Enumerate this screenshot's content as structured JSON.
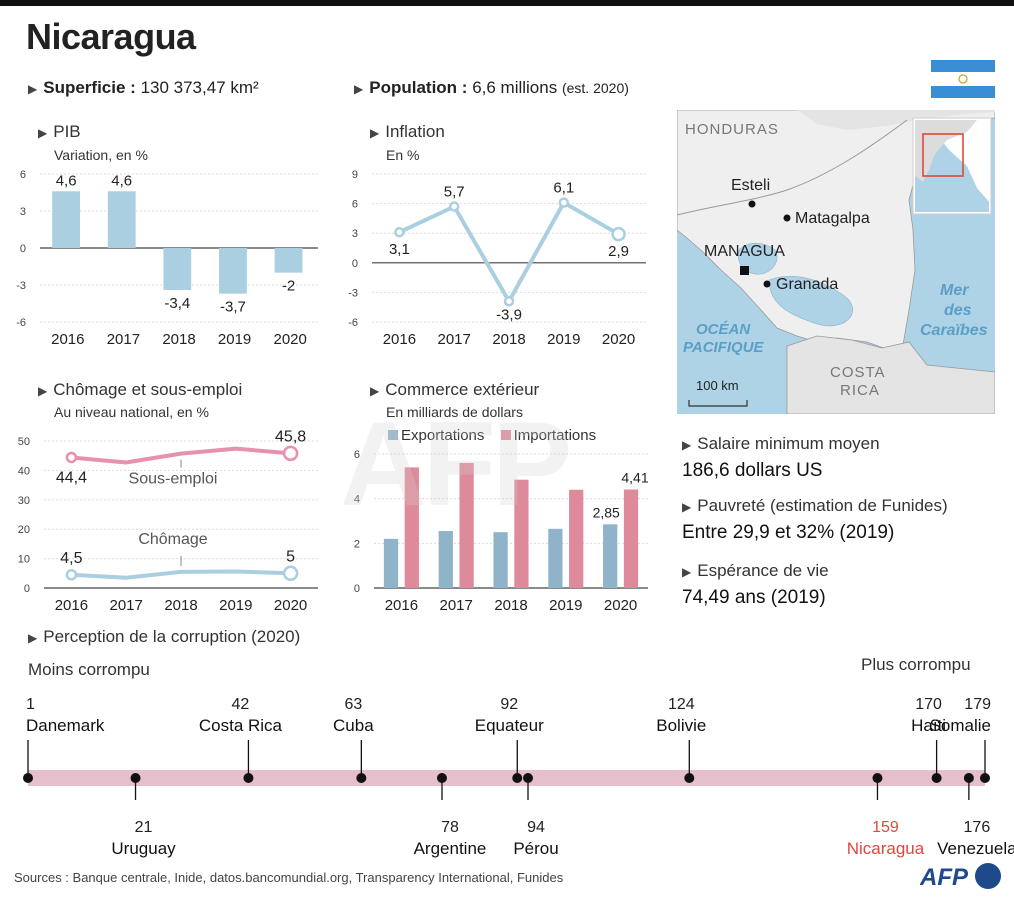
{
  "title": "Nicaragua",
  "facts": {
    "superficie_label": "Superficie :",
    "superficie_value": "130 373,47 km²",
    "population_label": "Population :",
    "population_value": "6,6 millions",
    "population_note": "(est. 2020)"
  },
  "chart_data": [
    {
      "type": "bar",
      "title": "PIB",
      "subtitle": "Variation, en %",
      "categories": [
        "2016",
        "2017",
        "2018",
        "2019",
        "2020"
      ],
      "values": [
        4.6,
        4.6,
        -3.4,
        -3.7,
        -2
      ],
      "value_labels": [
        "4,6",
        "4,6",
        "-3,4",
        "-3,7",
        "-2"
      ],
      "yticks": [
        "6",
        "3",
        "0",
        "-3",
        "-6"
      ],
      "ylim": [
        -6,
        6
      ],
      "color": "#a9cfe0"
    },
    {
      "type": "line",
      "title": "Inflation",
      "subtitle": "En %",
      "categories": [
        "2016",
        "2017",
        "2018",
        "2019",
        "2020"
      ],
      "values": [
        3.1,
        5.7,
        -3.9,
        6.1,
        2.9
      ],
      "value_labels": [
        "3,1",
        "5,7",
        "-3,9",
        "6,1",
        "2,9"
      ],
      "yticks": [
        "9",
        "6",
        "3",
        "0",
        "-3",
        "-6"
      ],
      "ylim": [
        -6,
        9
      ],
      "color": "#a9cfe0"
    },
    {
      "type": "line",
      "title": "Chômage et sous-emploi",
      "subtitle": "Au niveau national, en %",
      "categories": [
        "2016",
        "2017",
        "2018",
        "2019",
        "2020"
      ],
      "yticks": [
        "50",
        "40",
        "30",
        "20",
        "10",
        "0"
      ],
      "ylim": [
        0,
        50
      ],
      "series": [
        {
          "name": "Sous-emploi",
          "values": [
            44.4,
            42.7,
            45.7,
            47.4,
            45.8
          ],
          "labels": [
            "44,4",
            "",
            "",
            "",
            "45,8"
          ],
          "color": "#e890b0"
        },
        {
          "name": "Chômage",
          "values": [
            4.5,
            3.5,
            5.5,
            5.6,
            5
          ],
          "labels": [
            "4,5",
            "",
            "",
            "",
            "5"
          ],
          "color": "#a9cfe0"
        }
      ]
    },
    {
      "type": "bar",
      "title": "Commerce extérieur",
      "subtitle": "En milliards de dollars",
      "categories": [
        "2016",
        "2017",
        "2018",
        "2019",
        "2020"
      ],
      "yticks": [
        "6",
        "4",
        "2",
        "0"
      ],
      "ylim": [
        0,
        6
      ],
      "series": [
        {
          "name": "Exportations",
          "values": [
            2.2,
            2.55,
            2.5,
            2.65,
            2.85
          ],
          "labels": [
            "",
            "",
            "",
            "",
            "2,85"
          ],
          "color": "#8fb3c9"
        },
        {
          "name": "Importations",
          "values": [
            5.4,
            5.6,
            4.85,
            4.4,
            4.41
          ],
          "labels": [
            "",
            "",
            "",
            "",
            "4,41"
          ],
          "color": "#de8a9a"
        }
      ]
    }
  ],
  "map": {
    "labels": {
      "honduras": "HONDURAS",
      "esteli": "Esteli",
      "matagalpa": "Matagalpa",
      "managua": "MANAGUA",
      "granada": "Granada",
      "ocean_1": "OCÉAN",
      "ocean_2": "PACIFIQUE",
      "mer_1": "Mer",
      "mer_2": "des",
      "mer_3": "Caraïbes",
      "costa_1": "COSTA",
      "costa_2": "RICA",
      "scale": "100 km"
    },
    "colors": {
      "sea": "#aed2e6",
      "land": "#efefef",
      "sea_text": "#5b9fc7",
      "inset_frame": "#e0473d"
    }
  },
  "right_facts": [
    {
      "label": "Salaire minimum moyen",
      "value": "186,6 dollars US"
    },
    {
      "label": "Pauvreté (estimation de Funides)",
      "value": "Entre 29,9 et 32% (2019)"
    },
    {
      "label": "Espérance de vie",
      "value": "74,49 ans (2019)"
    }
  ],
  "corruption": {
    "title": "Perception de la corruption (2020)",
    "left_label": "Moins corrompu",
    "right_label": "Plus corrompu",
    "max_rank": 179,
    "highlight_color": "#e0473d",
    "bar_color": "#e6bfcd",
    "top": [
      {
        "rank": "1",
        "country": "Danemark"
      },
      {
        "rank": "42",
        "country": "Costa Rica"
      },
      {
        "rank": "63",
        "country": "Cuba"
      },
      {
        "rank": "92",
        "country": "Equateur"
      },
      {
        "rank": "124",
        "country": "Bolivie"
      },
      {
        "rank": "170",
        "country": "Haïti"
      },
      {
        "rank": "179",
        "country": "Somalie"
      }
    ],
    "bottom": [
      {
        "rank": "21",
        "country": "Uruguay"
      },
      {
        "rank": "78",
        "country": "Argentine"
      },
      {
        "rank": "94",
        "country": "Pérou"
      },
      {
        "rank": "159",
        "country": "Nicaragua",
        "highlight": true
      },
      {
        "rank": "176",
        "country": "Venezuela"
      }
    ]
  },
  "sources": "Sources : Banque centrale, Inide, datos.bancomundial.org, Transparency International, Funides",
  "logo": "AFP",
  "watermark": "AFP"
}
